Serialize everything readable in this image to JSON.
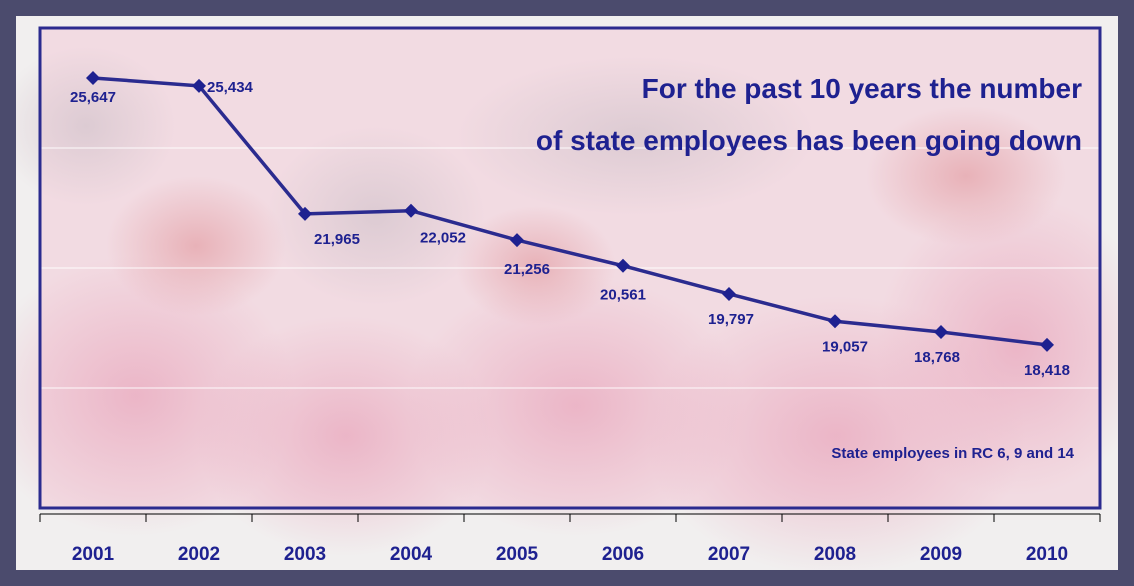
{
  "chart_data": {
    "type": "line",
    "title_lines": [
      "For the past 10 years the number",
      "of state employees has been going down"
    ],
    "annotation": "State employees in RC 6, 9 and 14",
    "categories": [
      "2001",
      "2002",
      "2003",
      "2004",
      "2005",
      "2006",
      "2007",
      "2008",
      "2009",
      "2010"
    ],
    "series": [
      {
        "values": [
          25647,
          25434,
          21965,
          22052,
          21256,
          20561,
          19797,
          19057,
          18768,
          18418
        ],
        "labels": [
          "25,647",
          "25,434",
          "21,965",
          "22,052",
          "21,256",
          "20,561",
          "19,797",
          "19,057",
          "18,768",
          "18,418"
        ]
      }
    ],
    "ylim": [
      14000,
      27000
    ],
    "grid": true,
    "xlabel": "",
    "ylabel": "",
    "colors": {
      "line": "#2b2b8f",
      "marker": "#1e2190",
      "text": "#1e2190",
      "frame": "#4b4b6d",
      "plot_border": "#2b2b8f",
      "plot_bg": "#f4e0e6"
    }
  }
}
